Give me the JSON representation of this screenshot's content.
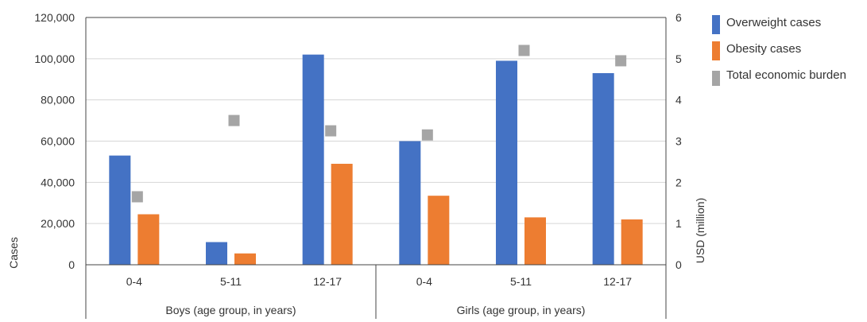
{
  "chart_data": {
    "type": "bar",
    "groups": [
      {
        "label": "Boys (age group, in years)",
        "categories": [
          "0-4",
          "5-11",
          "12-17"
        ]
      },
      {
        "label": "Girls (age group, in years)",
        "categories": [
          "0-4",
          "5-11",
          "12-17"
        ]
      }
    ],
    "series": [
      {
        "name": "Overweight cases",
        "kind": "bar",
        "axis": "left",
        "color": "#4472C4",
        "values": [
          53000,
          11000,
          102000,
          60000,
          99000,
          93000
        ]
      },
      {
        "name": "Obesity cases",
        "kind": "bar",
        "axis": "left",
        "color": "#ED7D31",
        "values": [
          24500,
          5500,
          49000,
          33500,
          23000,
          22000
        ]
      },
      {
        "name": "Total economic burden",
        "kind": "marker",
        "axis": "right",
        "color": "#A5A5A5",
        "values": [
          1.65,
          3.5,
          3.25,
          3.15,
          5.2,
          4.95
        ]
      }
    ],
    "ylabel": "Cases",
    "y2label": "USD (million)",
    "ylim": [
      0,
      120000
    ],
    "y2lim": [
      0,
      6
    ],
    "yticks": [
      "0",
      "20,000",
      "40,000",
      "60,000",
      "80,000",
      "100,000",
      "120,000"
    ],
    "y2ticks": [
      "0",
      "1",
      "2",
      "3",
      "4",
      "5",
      "6"
    ],
    "grid": true,
    "legend_position": "right"
  }
}
